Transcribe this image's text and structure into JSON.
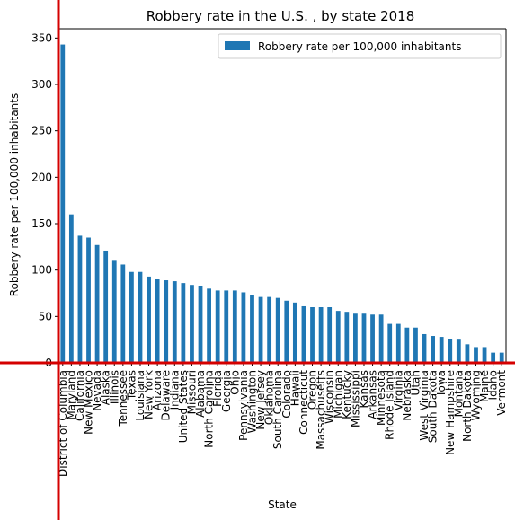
{
  "chart_data": {
    "type": "bar",
    "title": "Robbery rate in the U.S. , by state 2018",
    "xlabel": "State",
    "ylabel": "Robbery rate per 100,000 inhabitants",
    "ylim": [
      0,
      360
    ],
    "yticks": [
      0,
      50,
      100,
      150,
      200,
      250,
      300,
      350
    ],
    "grid": false,
    "legend_position": "top-right",
    "series": [
      {
        "name": "Robbery rate per 100,000 inhabitants",
        "color": "#1f77b4",
        "values": [
          343,
          160,
          137,
          135,
          127,
          121,
          110,
          106,
          98,
          98,
          93,
          90,
          89,
          88,
          86,
          84,
          83,
          80,
          78,
          78,
          78,
          76,
          73,
          71,
          71,
          70,
          67,
          65,
          61,
          60,
          60,
          60,
          56,
          55,
          53,
          53,
          52,
          52,
          42,
          42,
          38,
          38,
          31,
          29,
          28,
          26,
          25,
          20,
          17,
          17,
          11,
          11
        ]
      }
    ],
    "categories": [
      "District of Columbia",
      "Maryland",
      "California",
      "New Mexico",
      "Nevada",
      "Alaska",
      "Illinois",
      "Tennessee",
      "Texas",
      "Louisiana",
      "New York",
      "Arizona",
      "Delaware",
      "Indiana",
      "United States",
      "Missouri",
      "Alabama",
      "North Carolina",
      "Florida",
      "Georgia",
      "Ohio",
      "Pennsylvania",
      "Washington",
      "New Jersey",
      "Oklahoma",
      "South Carolina",
      "Colorado",
      "Hawaii",
      "Connecticut",
      "Oregon",
      "Massachusetts",
      "Wisconsin",
      "Michigan",
      "Kentucky",
      "Mississippi",
      "Kansas",
      "Arkansas",
      "Minnesota",
      "Rhode Island",
      "Virginia",
      "Nebraska",
      "Utah",
      "West Virginia",
      "South Dakota",
      "Iowa",
      "New Hampshire",
      "Montana",
      "North Dakota",
      "Wyoming",
      "Maine",
      "Idaho",
      "Vermont"
    ]
  }
}
